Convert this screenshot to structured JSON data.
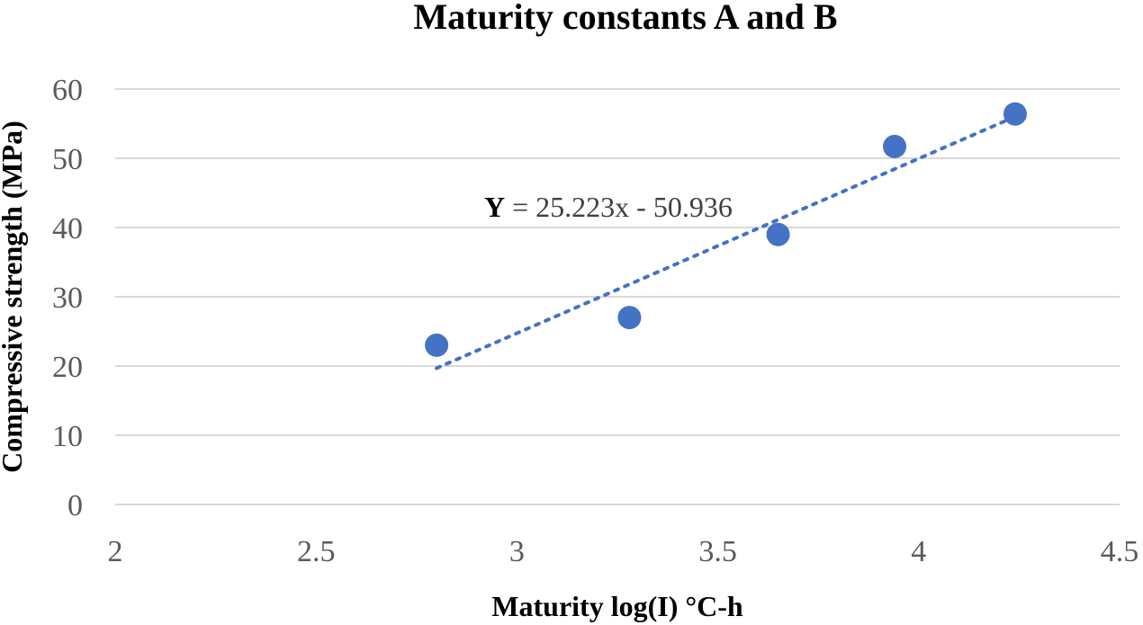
{
  "chart_data": {
    "type": "scatter",
    "title": "Maturity constants A and B",
    "xlabel": "Maturity log(I) °C-h",
    "ylabel": "Compressive strength (MPa)",
    "xlim": [
      2,
      4.5
    ],
    "ylim": [
      0,
      60
    ],
    "x_ticks": [
      "2",
      "2.5",
      "3",
      "3.5",
      "4",
      "4.5"
    ],
    "y_ticks": [
      "0",
      "10",
      "20",
      "30",
      "40",
      "50",
      "60"
    ],
    "grid": true,
    "legend": "none",
    "series": [
      {
        "points": [
          {
            "x": 2.8,
            "y": 23.0
          },
          {
            "x": 3.28,
            "y": 27.0
          },
          {
            "x": 3.65,
            "y": 39.0
          },
          {
            "x": 3.94,
            "y": 51.7
          },
          {
            "x": 4.24,
            "y": 56.4
          }
        ],
        "color": "#4472c4"
      }
    ],
    "trendline": {
      "slope": 25.223,
      "intercept": -50.936,
      "x_range": [
        2.8,
        4.24
      ],
      "style": "dotted",
      "color": "#4472c4",
      "equation_var": "Y",
      "equation_rest": " = 25.223x - 50.936"
    }
  }
}
